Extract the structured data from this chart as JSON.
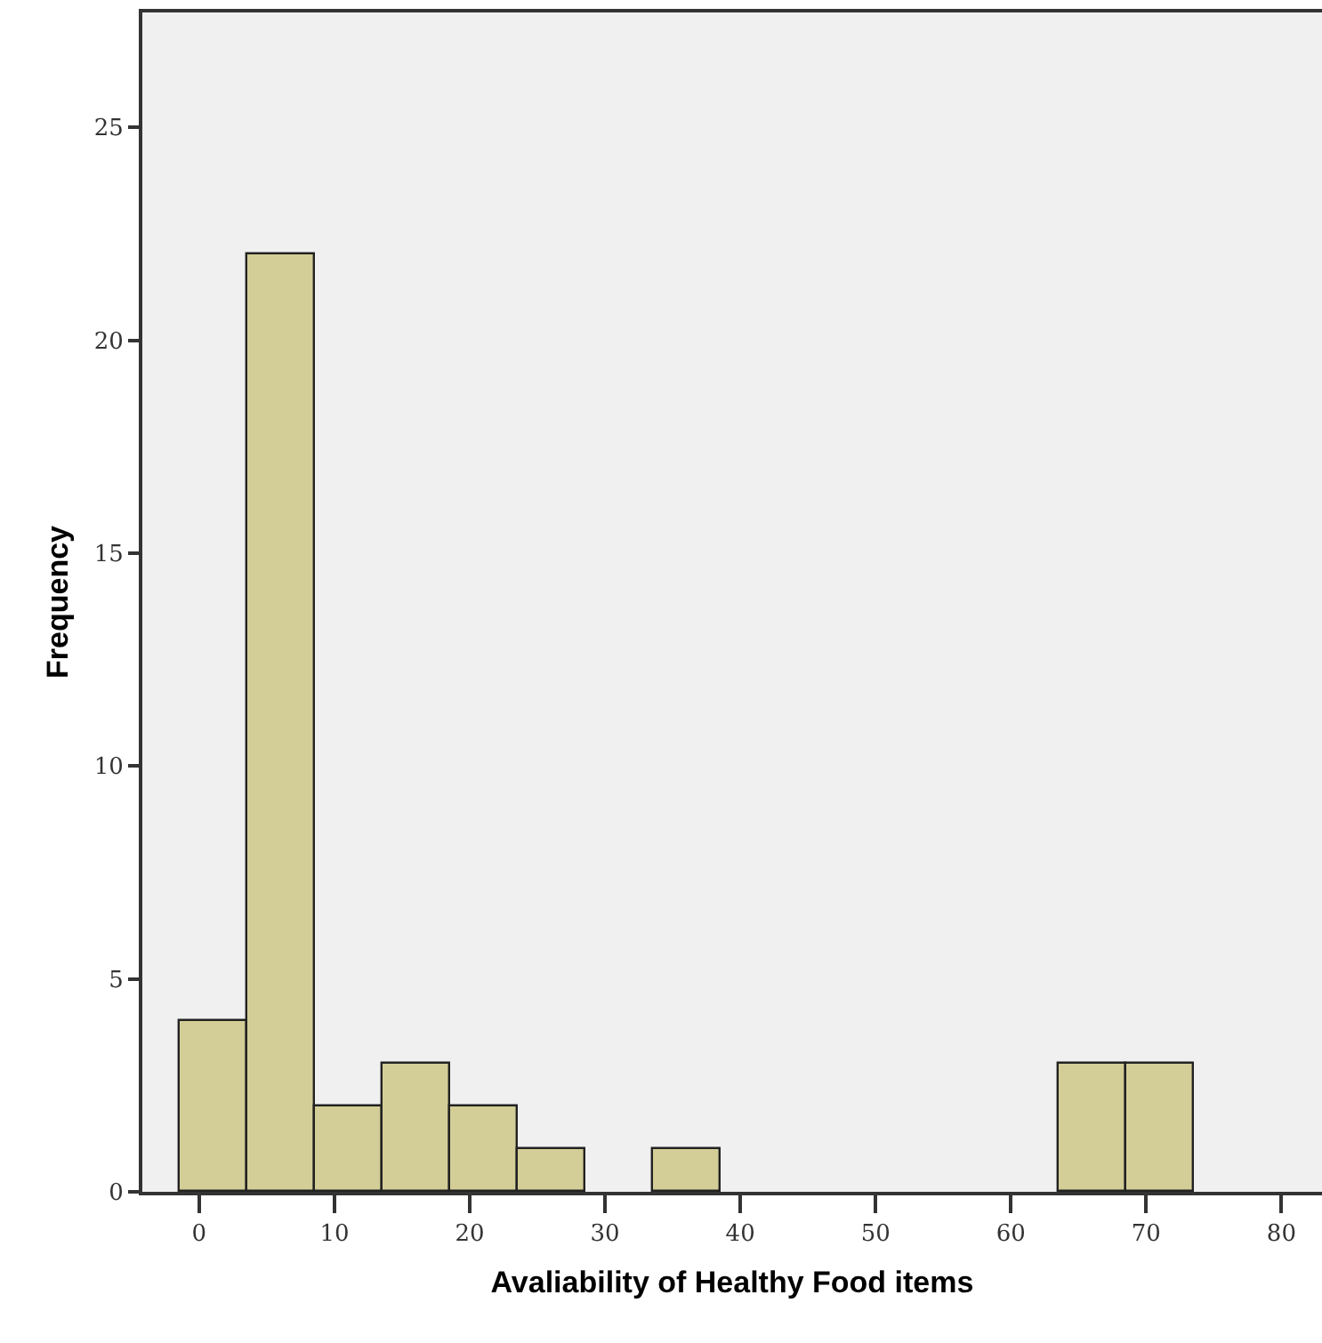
{
  "chart_data": {
    "type": "histogram",
    "xlabel": "Avaliability of Healthy Food items",
    "ylabel": "Frequency",
    "bins": [
      -1.5,
      3.5,
      8.5,
      13.5,
      18.5,
      23.5,
      28.5,
      33.5,
      38.5,
      43.5,
      48.5,
      53.5,
      58.5,
      63.5,
      68.5,
      73.5
    ],
    "values": [
      4,
      22,
      2,
      3,
      2,
      1,
      0,
      1,
      0,
      0,
      0,
      0,
      0,
      3,
      3
    ],
    "color": "#d3ce97",
    "xlim": [
      -4.2,
      83
    ],
    "xticks": [
      0,
      10,
      20,
      30,
      40,
      50,
      60,
      70,
      80
    ],
    "ylim": [
      0,
      27.7
    ],
    "yticks": [
      0,
      5,
      10,
      15,
      20,
      25
    ],
    "grid": false,
    "legend": false
  }
}
